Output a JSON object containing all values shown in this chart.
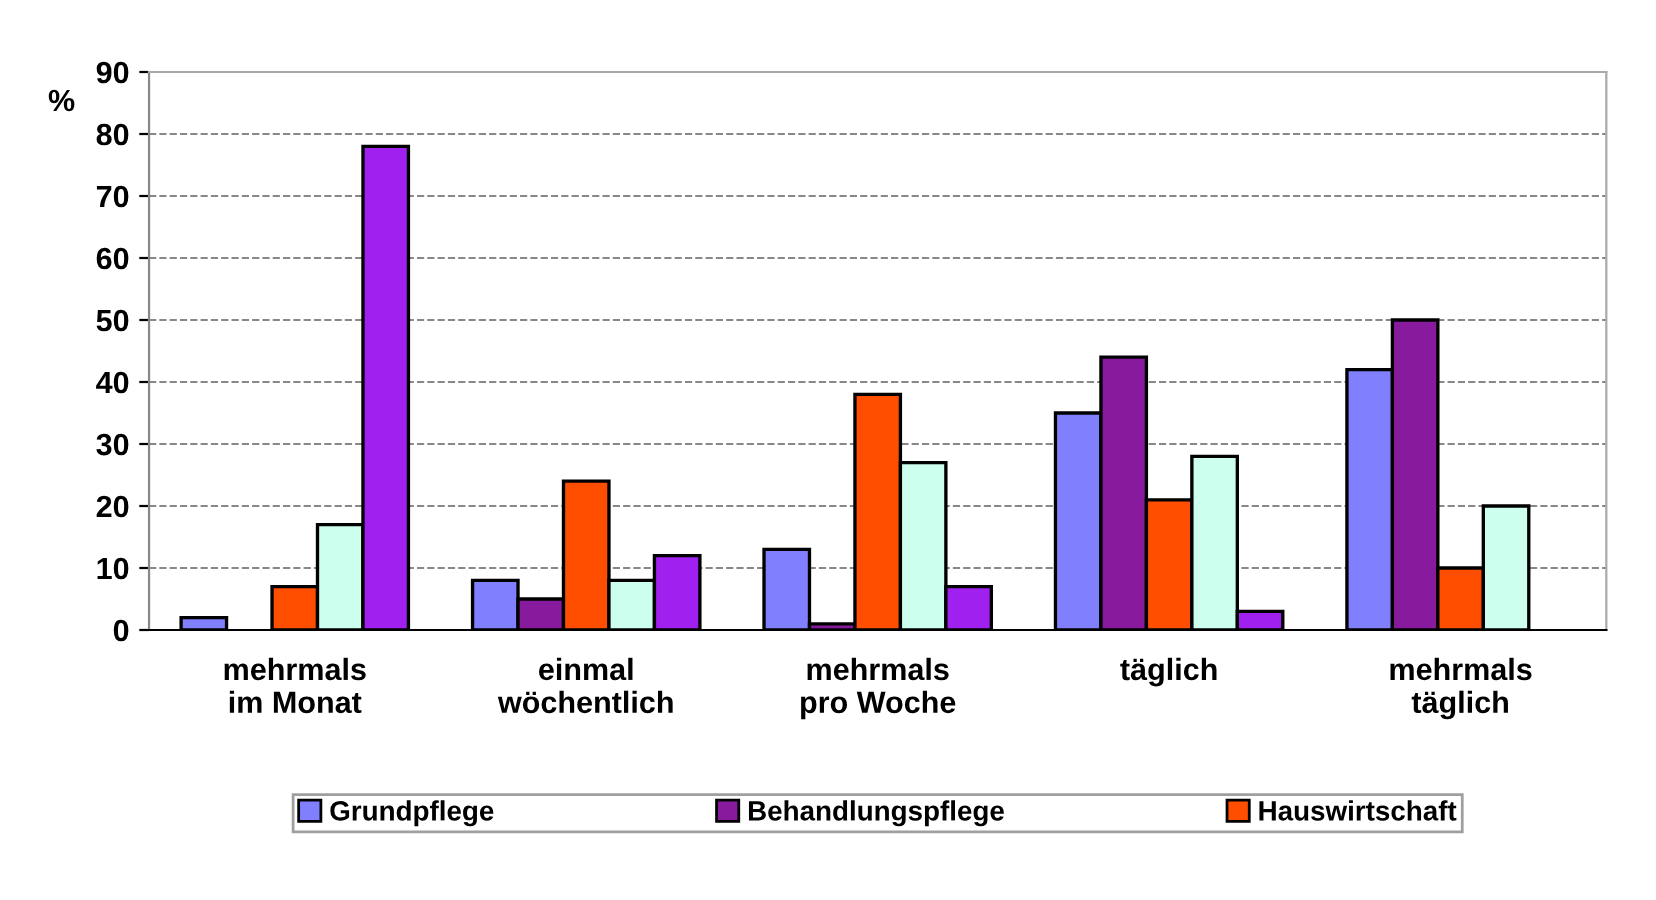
{
  "chart_data": {
    "type": "bar",
    "ylabel": "%",
    "categories": [
      "mehrmals\nim Monat",
      "einmal\nwöchentlich",
      "mehrmals\npro Woche",
      "täglich",
      "mehrmals\ntäglich"
    ],
    "series": [
      {
        "name": "Grundpflege",
        "color": "#8080ff",
        "values": [
          2,
          8,
          13,
          35,
          42
        ]
      },
      {
        "name": "Behandlungspflege",
        "color": "#881a9e",
        "values": [
          null,
          5,
          1,
          44,
          50
        ]
      },
      {
        "name": "Hauswirtschaft",
        "color": "#ff4e00",
        "values": [
          7,
          24,
          38,
          21,
          10
        ]
      },
      {
        "color": "#ccffee",
        "values": [
          17,
          8,
          27,
          28,
          20
        ]
      },
      {
        "color": "#a020f0",
        "values": [
          78,
          12,
          7,
          3,
          null
        ]
      }
    ],
    "ylim": [
      0,
      90
    ],
    "yticks": [
      0,
      10,
      20,
      30,
      40,
      50,
      60,
      70,
      80,
      90
    ],
    "grid": "y",
    "legend": "bottom"
  }
}
